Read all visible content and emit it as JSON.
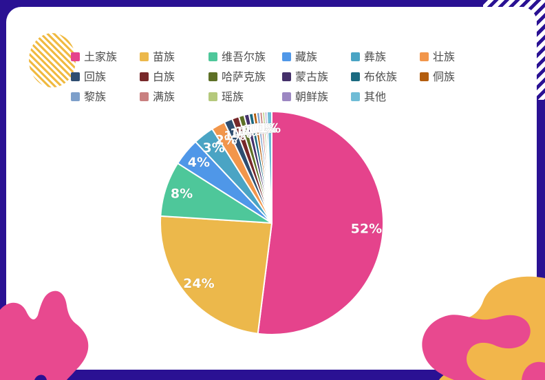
{
  "palette": {
    "frame": "#2a1193",
    "card": "#ffffff",
    "legend_text": "#4d4d4d",
    "pie_label_text": "#ffffff"
  },
  "decorations": {
    "striped_circle_color": "#f0ba42",
    "corner_stripes_color": "#2a1193",
    "blob_pink": "#e8498f",
    "blob_yellow": "#f2b64b",
    "bottom_bar_color": "#2a1193"
  },
  "chart_data": {
    "type": "pie",
    "title": "",
    "legend_position": "top",
    "label_position": "inside",
    "start_angle_deg": -90,
    "clockwise": true,
    "center": [
      395,
      324
    ],
    "radius": 162,
    "label_radius_ratio": 0.85,
    "series": [
      {
        "name": "土家族",
        "value": 52,
        "label": "52%",
        "color": "#e5438c"
      },
      {
        "name": "苗族",
        "value": 24,
        "label": "24%",
        "color": "#ecb84b"
      },
      {
        "name": "维吾尔族",
        "value": 8,
        "label": "8%",
        "color": "#4ec79a"
      },
      {
        "name": "藏族",
        "value": 4,
        "label": "4%",
        "color": "#4f97e8"
      },
      {
        "name": "彝族",
        "value": 3,
        "label": "3%",
        "color": "#4aa4c4"
      },
      {
        "name": "壮族",
        "value": 2,
        "label": "2%",
        "color": "#f2964b"
      },
      {
        "name": "回族",
        "value": 1.2,
        "label": "1%",
        "color": "#2e4d70"
      },
      {
        "name": "白族",
        "value": 1.0,
        "label": "1%",
        "color": "#77282a"
      },
      {
        "name": "哈萨克族",
        "value": 0.8,
        "label": "1%",
        "color": "#5d7026"
      },
      {
        "name": "蒙古族",
        "value": 0.7,
        "label": "1%",
        "color": "#44306a"
      },
      {
        "name": "布依族",
        "value": 0.6,
        "label": "1%",
        "color": "#1a6a80"
      },
      {
        "name": "侗族",
        "value": 0.5,
        "label": "1%",
        "color": "#b35d0e"
      },
      {
        "name": "黎族",
        "value": 0.45,
        "label": "0%",
        "color": "#7d9fca"
      },
      {
        "name": "满族",
        "value": 0.4,
        "label": "0%",
        "color": "#c98080"
      },
      {
        "name": "瑶族",
        "value": 0.35,
        "label": "0%",
        "color": "#b5c97c"
      },
      {
        "name": "朝鲜族",
        "value": 0.3,
        "label": "0%",
        "color": "#9c87c2"
      },
      {
        "name": "其他",
        "value": 0.7,
        "label": "1%",
        "color": "#6fbcd6"
      }
    ]
  }
}
